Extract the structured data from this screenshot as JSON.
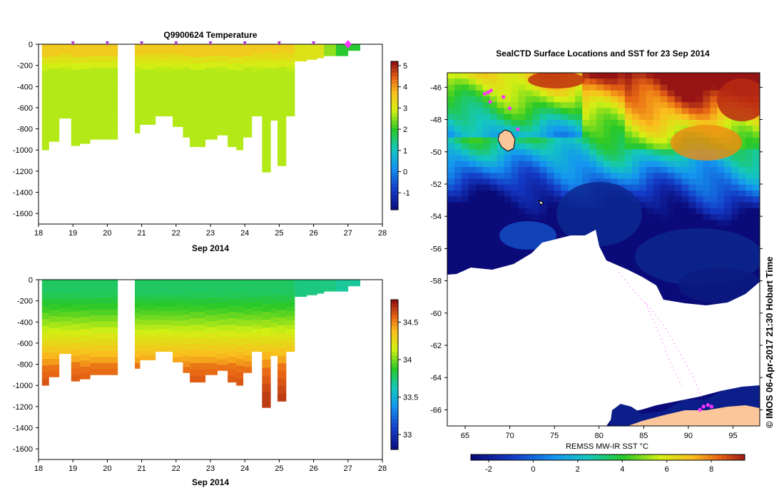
{
  "chart_data": [
    {
      "type": "heatmap",
      "title": "Q9900624  Temperature",
      "xlabel": "Sep 2014",
      "ylabel": "",
      "x_ticks": [
        "18",
        "19",
        "20",
        "21",
        "22",
        "23",
        "24",
        "25",
        "26",
        "27",
        "28"
      ],
      "y_ticks": [
        "0",
        "-200",
        "-400",
        "-600",
        "-800",
        "-1000",
        "-1200",
        "-1400",
        "-1600"
      ],
      "xlim": [
        18,
        28
      ],
      "ylim": [
        -1700,
        0
      ],
      "colorbar": {
        "min": -1.8,
        "max": 5.2,
        "ticks": [
          "5",
          "4",
          "3",
          "2",
          "1",
          "0",
          "-1"
        ]
      },
      "profile_markers_day": [
        19,
        20,
        21,
        22,
        23,
        24,
        25,
        26
      ],
      "latest_marker_day": 27,
      "profiles": [
        {
          "x0": 18.1,
          "x1": 18.3,
          "depth": 1000
        },
        {
          "x0": 18.3,
          "x1": 18.6,
          "depth": 920
        },
        {
          "x0": 18.6,
          "x1": 18.95,
          "depth": 700
        },
        {
          "x0": 18.95,
          "x1": 19.2,
          "depth": 960
        },
        {
          "x0": 19.2,
          "x1": 19.5,
          "depth": 940
        },
        {
          "x0": 19.5,
          "x1": 19.8,
          "depth": 900
        },
        {
          "x0": 19.8,
          "x1": 20.3,
          "depth": 900
        },
        {
          "x0": 20.8,
          "x1": 20.95,
          "depth": 840
        },
        {
          "x0": 20.95,
          "x1": 21.4,
          "depth": 760
        },
        {
          "x0": 21.4,
          "x1": 21.9,
          "depth": 680
        },
        {
          "x0": 21.9,
          "x1": 22.2,
          "depth": 780
        },
        {
          "x0": 22.2,
          "x1": 22.4,
          "depth": 880
        },
        {
          "x0": 22.4,
          "x1": 22.85,
          "depth": 970
        },
        {
          "x0": 22.85,
          "x1": 23.2,
          "depth": 900
        },
        {
          "x0": 23.2,
          "x1": 23.5,
          "depth": 860
        },
        {
          "x0": 23.5,
          "x1": 23.75,
          "depth": 970
        },
        {
          "x0": 23.75,
          "x1": 23.95,
          "depth": 1000
        },
        {
          "x0": 23.95,
          "x1": 24.2,
          "depth": 880
        },
        {
          "x0": 24.2,
          "x1": 24.5,
          "depth": 680
        },
        {
          "x0": 24.5,
          "x1": 24.75,
          "depth": 1210
        },
        {
          "x0": 24.75,
          "x1": 24.95,
          "depth": 720
        },
        {
          "x0": 24.95,
          "x1": 25.2,
          "depth": 1150
        },
        {
          "x0": 25.2,
          "x1": 25.45,
          "depth": 680
        },
        {
          "x0": 25.45,
          "x1": 25.8,
          "depth": 160
        },
        {
          "x0": 25.8,
          "x1": 26.1,
          "depth": 145
        },
        {
          "x0": 26.1,
          "x1": 26.3,
          "depth": 130
        },
        {
          "x0": 26.3,
          "x1": 26.65,
          "depth": 110
        },
        {
          "x0": 26.65,
          "x1": 27.0,
          "depth": 110
        },
        {
          "x0": 27.0,
          "x1": 27.35,
          "depth": 60
        }
      ]
    },
    {
      "type": "heatmap",
      "title": "",
      "xlabel": "Sep 2014",
      "ylabel": "",
      "x_ticks": [
        "18",
        "19",
        "20",
        "21",
        "22",
        "23",
        "24",
        "25",
        "26",
        "27",
        "28"
      ],
      "y_ticks": [
        "0",
        "-200",
        "-400",
        "-600",
        "-800",
        "-1000",
        "-1200",
        "-1400",
        "-1600"
      ],
      "xlim": [
        18,
        28
      ],
      "ylim": [
        -1700,
        0
      ],
      "colorbar": {
        "min": 32.8,
        "max": 34.8,
        "ticks": [
          "34.5",
          "34",
          "33.5",
          "33"
        ]
      },
      "profiles_same_as_temperature": true
    },
    {
      "type": "heatmap",
      "title": "SealCTD Surface Locations and SST for 23 Sep 2014",
      "xlabel": "REMSS MW-IR SST °C",
      "x_ticks": [
        "65",
        "70",
        "75",
        "80",
        "85",
        "90",
        "95"
      ],
      "y_ticks": [
        "-46",
        "-48",
        "-50",
        "-52",
        "-54",
        "-56",
        "-58",
        "-60",
        "-62",
        "-64",
        "-66"
      ],
      "xlim": [
        63,
        98
      ],
      "ylim": [
        -67,
        -45.1
      ],
      "colorbar": {
        "min": -2.8,
        "max": 9.5,
        "ticks": [
          "-2",
          "0",
          "2",
          "4",
          "6",
          "8"
        ]
      },
      "seal_locations": [
        {
          "lon": 67.2,
          "lat": -46.4
        },
        {
          "lon": 67.6,
          "lat": -46.3
        },
        {
          "lon": 67.9,
          "lat": -46.2
        },
        {
          "lon": 69.3,
          "lat": -46.6
        },
        {
          "lon": 67.8,
          "lat": -46.9
        },
        {
          "lon": 70.0,
          "lat": -47.3
        },
        {
          "lon": 70.9,
          "lat": -48.6
        },
        {
          "lon": 91.7,
          "lat": -65.8
        },
        {
          "lon": 92.2,
          "lat": -65.7
        },
        {
          "lon": 92.6,
          "lat": -65.8
        },
        {
          "lon": 91.3,
          "lat": -66.0
        }
      ]
    }
  ],
  "credit": "© IMOS 06-Apr-2017 21:30 Hobart Time"
}
